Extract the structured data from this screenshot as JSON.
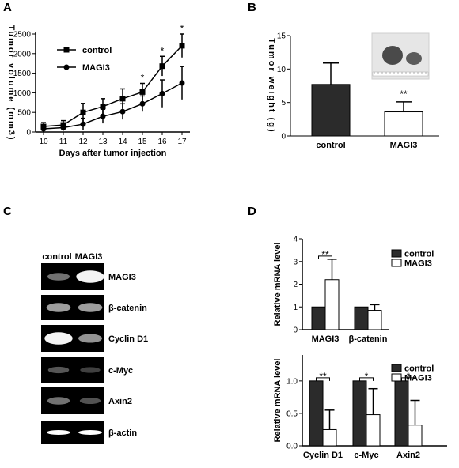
{
  "panels": {
    "A": "A",
    "B": "B",
    "C": "C",
    "D": "D"
  },
  "chart_data": [
    {
      "panel": "A",
      "type": "line",
      "x": [
        10,
        11,
        12,
        13,
        14,
        15,
        16,
        17
      ],
      "xlabel": "Days after tumor injection",
      "ylabel": "Tumor volume (mm3)",
      "ylim": [
        0,
        2500
      ],
      "yticks": [
        0,
        500,
        1000,
        1500,
        2000,
        2500
      ],
      "legend": "top-left",
      "series": [
        {
          "name": "control",
          "marker": "square",
          "values": [
            140,
            180,
            500,
            650,
            850,
            1020,
            1680,
            2200
          ],
          "errors": [
            100,
            110,
            230,
            200,
            250,
            220,
            250,
            300
          ]
        },
        {
          "name": "MAGI3",
          "marker": "circle",
          "values": [
            80,
            110,
            200,
            400,
            520,
            720,
            980,
            1250
          ],
          "errors": [
            70,
            80,
            150,
            180,
            200,
            200,
            350,
            420
          ]
        }
      ],
      "annotations": [
        {
          "x": 15,
          "text": "*"
        },
        {
          "x": 16,
          "text": "*"
        },
        {
          "x": 17,
          "text": "*"
        }
      ]
    },
    {
      "panel": "B",
      "type": "bar",
      "categories": [
        "control",
        "MAGI3"
      ],
      "values": [
        7.7,
        3.6
      ],
      "errors": [
        3.2,
        1.5
      ],
      "colors": [
        "#2b2b2b",
        "#ffffff"
      ],
      "ylabel": "Tumor weight (g)",
      "ylim": [
        0,
        15
      ],
      "yticks": [
        0,
        5,
        10,
        15
      ],
      "annotations": [
        {
          "category": "MAGI3",
          "text": "**"
        }
      ]
    },
    {
      "panel": "D-top",
      "type": "bar",
      "categories": [
        "MAGI3",
        "β-catenin"
      ],
      "series": [
        {
          "name": "control",
          "values": [
            1.0,
            1.0
          ],
          "errors": [
            0,
            0
          ]
        },
        {
          "name": "MAGI3",
          "values": [
            2.2,
            0.85
          ],
          "errors": [
            0.9,
            0.25
          ]
        }
      ],
      "ylabel": "Relative mRNA level",
      "ylim": [
        0,
        4
      ],
      "yticks": [
        0,
        1,
        2,
        3,
        4
      ],
      "legend": "top-right",
      "annotations": [
        {
          "category": "MAGI3",
          "text": "**"
        }
      ]
    },
    {
      "panel": "D-bottom",
      "type": "bar",
      "categories": [
        "Cyclin D1",
        "c-Myc",
        "Axin2"
      ],
      "series": [
        {
          "name": "control",
          "values": [
            1.0,
            1.0,
            1.0
          ],
          "errors": [
            0,
            0,
            0
          ]
        },
        {
          "name": "MAGI3",
          "values": [
            0.25,
            0.48,
            0.32
          ],
          "errors": [
            0.3,
            0.4,
            0.38
          ]
        }
      ],
      "ylabel": "Relative mRNA level",
      "ylim": [
        0,
        1.4
      ],
      "yticks": [
        "0.0",
        "0.5",
        "1.0"
      ],
      "legend": "top-right",
      "annotations": [
        {
          "category": "Cyclin D1",
          "text": "**"
        },
        {
          "category": "c-Myc",
          "text": "*"
        },
        {
          "category": "Axin2",
          "text": "*"
        }
      ]
    }
  ],
  "gel": {
    "columns": [
      "control",
      "MAGI3"
    ],
    "rows": [
      {
        "label": "MAGI3",
        "intensity": [
          0.35,
          0.95
        ]
      },
      {
        "label": "β-catenin",
        "intensity": [
          0.55,
          0.55
        ]
      },
      {
        "label": "Cyclin D1",
        "intensity": [
          0.95,
          0.5
        ]
      },
      {
        "label": "c-Myc",
        "intensity": [
          0.22,
          0.12
        ]
      },
      {
        "label": "Axin2",
        "intensity": [
          0.35,
          0.2
        ]
      },
      {
        "label": "β-actin",
        "intensity": [
          1.0,
          1.0
        ]
      }
    ]
  },
  "colors": {
    "control_bar": "#2b2b2b",
    "magi3_bar": "#ffffff",
    "gel_bg": "#000000",
    "band": "#ffffff"
  }
}
